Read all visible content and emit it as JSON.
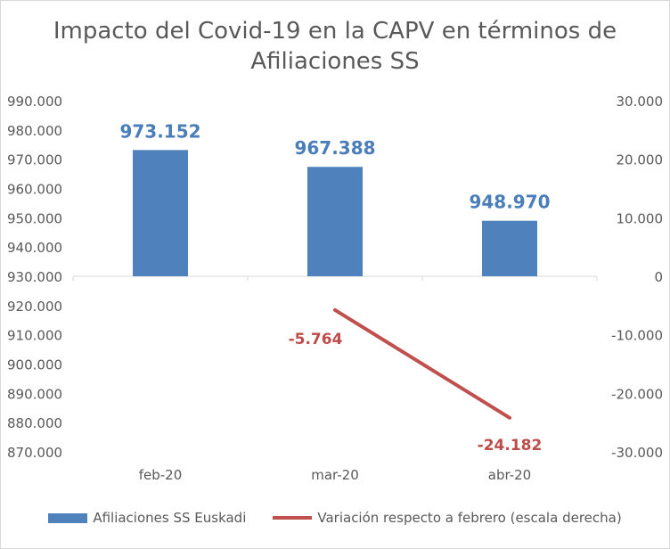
{
  "chart_data": {
    "type": "bar+line",
    "title": "Impacto del Covid-19 en la CAPV en términos de Afiliaciones SS",
    "categories": [
      "feb-20",
      "mar-20",
      "abr-20"
    ],
    "series": [
      {
        "name": "Afiliaciones SS Euskadi",
        "type": "bar",
        "axis": "left",
        "values": [
          973152,
          967388,
          948970
        ],
        "labels": [
          "973.152",
          "967.388",
          "948.970"
        ]
      },
      {
        "name": "Variación respecto a febrero (escala derecha)",
        "type": "line",
        "axis": "right",
        "points": [
          {
            "category": "mar-20",
            "value": -5764
          },
          {
            "category": "abr-20",
            "value": -24182
          }
        ],
        "labels": [
          "-5.764",
          "-24.182"
        ]
      }
    ],
    "y_left": {
      "ylim": [
        870000,
        990000
      ],
      "ticks": [
        990000,
        980000,
        970000,
        960000,
        950000,
        940000,
        930000,
        920000,
        910000,
        900000,
        890000,
        880000,
        870000
      ],
      "tick_labels": [
        "990.000",
        "980.000",
        "970.000",
        "960.000",
        "950.000",
        "940.000",
        "930.000",
        "920.000",
        "910.000",
        "900.000",
        "890.000",
        "880.000",
        "870.000"
      ]
    },
    "y_right": {
      "ylim": [
        -30000,
        30000
      ],
      "ticks": [
        30000,
        20000,
        10000,
        0,
        -10000,
        -20000,
        -30000
      ],
      "tick_labels": [
        "30.000",
        "20.000",
        "10.000",
        "0",
        "-10.000",
        "-20.000",
        "-30.000"
      ]
    },
    "grid": false,
    "legend": "bottom",
    "colors": {
      "bar": "#4f81bd",
      "line": "#c0504d",
      "bar_label": "#4a7ebb",
      "line_label": "#be4b48"
    }
  }
}
